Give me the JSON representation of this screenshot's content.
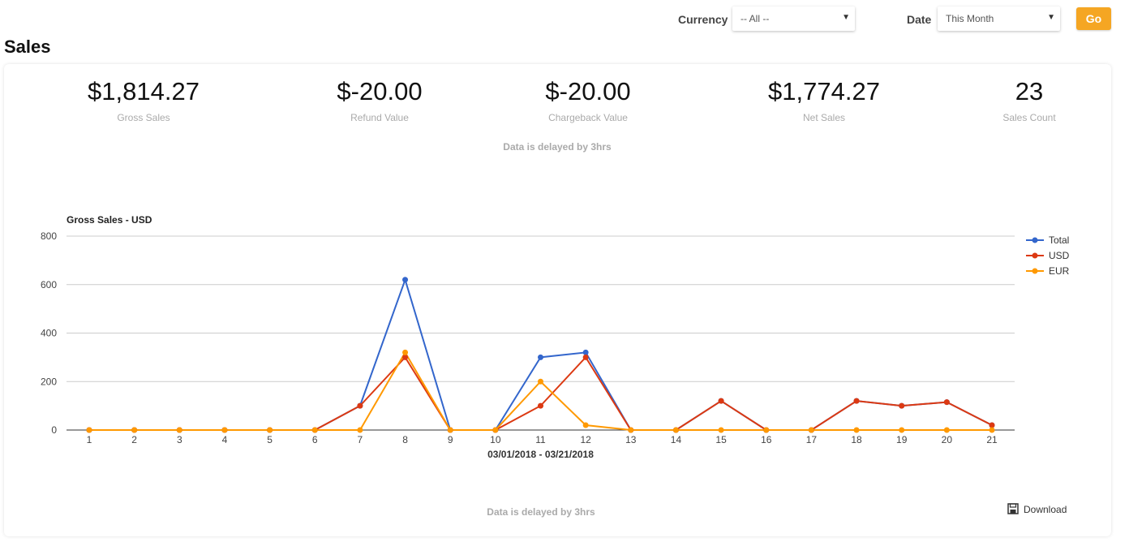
{
  "filters": {
    "currency_label": "Currency",
    "currency_value": "-- All --",
    "date_label": "Date",
    "date_value": "This Month",
    "go_label": "Go"
  },
  "page": {
    "title": "Sales",
    "delay_note": "Data is delayed by 3hrs",
    "download_label": "Download"
  },
  "metrics": [
    {
      "value": "$1,814.27",
      "label": "Gross Sales"
    },
    {
      "value": "$-20.00",
      "label": "Refund Value"
    },
    {
      "value": "$-20.00",
      "label": "Chargeback Value"
    },
    {
      "value": "$1,774.27",
      "label": "Net Sales"
    },
    {
      "value": "23",
      "label": "Sales Count"
    }
  ],
  "chart_data": {
    "type": "line",
    "title": "Gross Sales - USD",
    "xlabel": "03/01/2018 - 03/21/2018",
    "ylabel": "",
    "x": [
      1,
      2,
      3,
      4,
      5,
      6,
      7,
      8,
      9,
      10,
      11,
      12,
      13,
      14,
      15,
      16,
      17,
      18,
      19,
      20,
      21
    ],
    "ylim": [
      0,
      800
    ],
    "yticks": [
      0,
      200,
      400,
      600,
      800
    ],
    "grid": true,
    "legend": "right",
    "series": [
      {
        "name": "Total",
        "color": "#3366cc",
        "values": [
          0,
          0,
          0,
          0,
          0,
          0,
          100,
          620,
          0,
          0,
          300,
          320,
          0,
          0,
          120,
          0,
          0,
          120,
          100,
          115,
          20
        ]
      },
      {
        "name": "USD",
        "color": "#dc3912",
        "values": [
          0,
          0,
          0,
          0,
          0,
          0,
          100,
          300,
          0,
          0,
          100,
          300,
          0,
          0,
          120,
          0,
          0,
          120,
          100,
          115,
          20
        ]
      },
      {
        "name": "EUR",
        "color": "#ff9900",
        "values": [
          0,
          0,
          0,
          0,
          0,
          0,
          0,
          320,
          0,
          0,
          200,
          20,
          0,
          0,
          0,
          0,
          0,
          0,
          0,
          0,
          0
        ]
      }
    ]
  }
}
